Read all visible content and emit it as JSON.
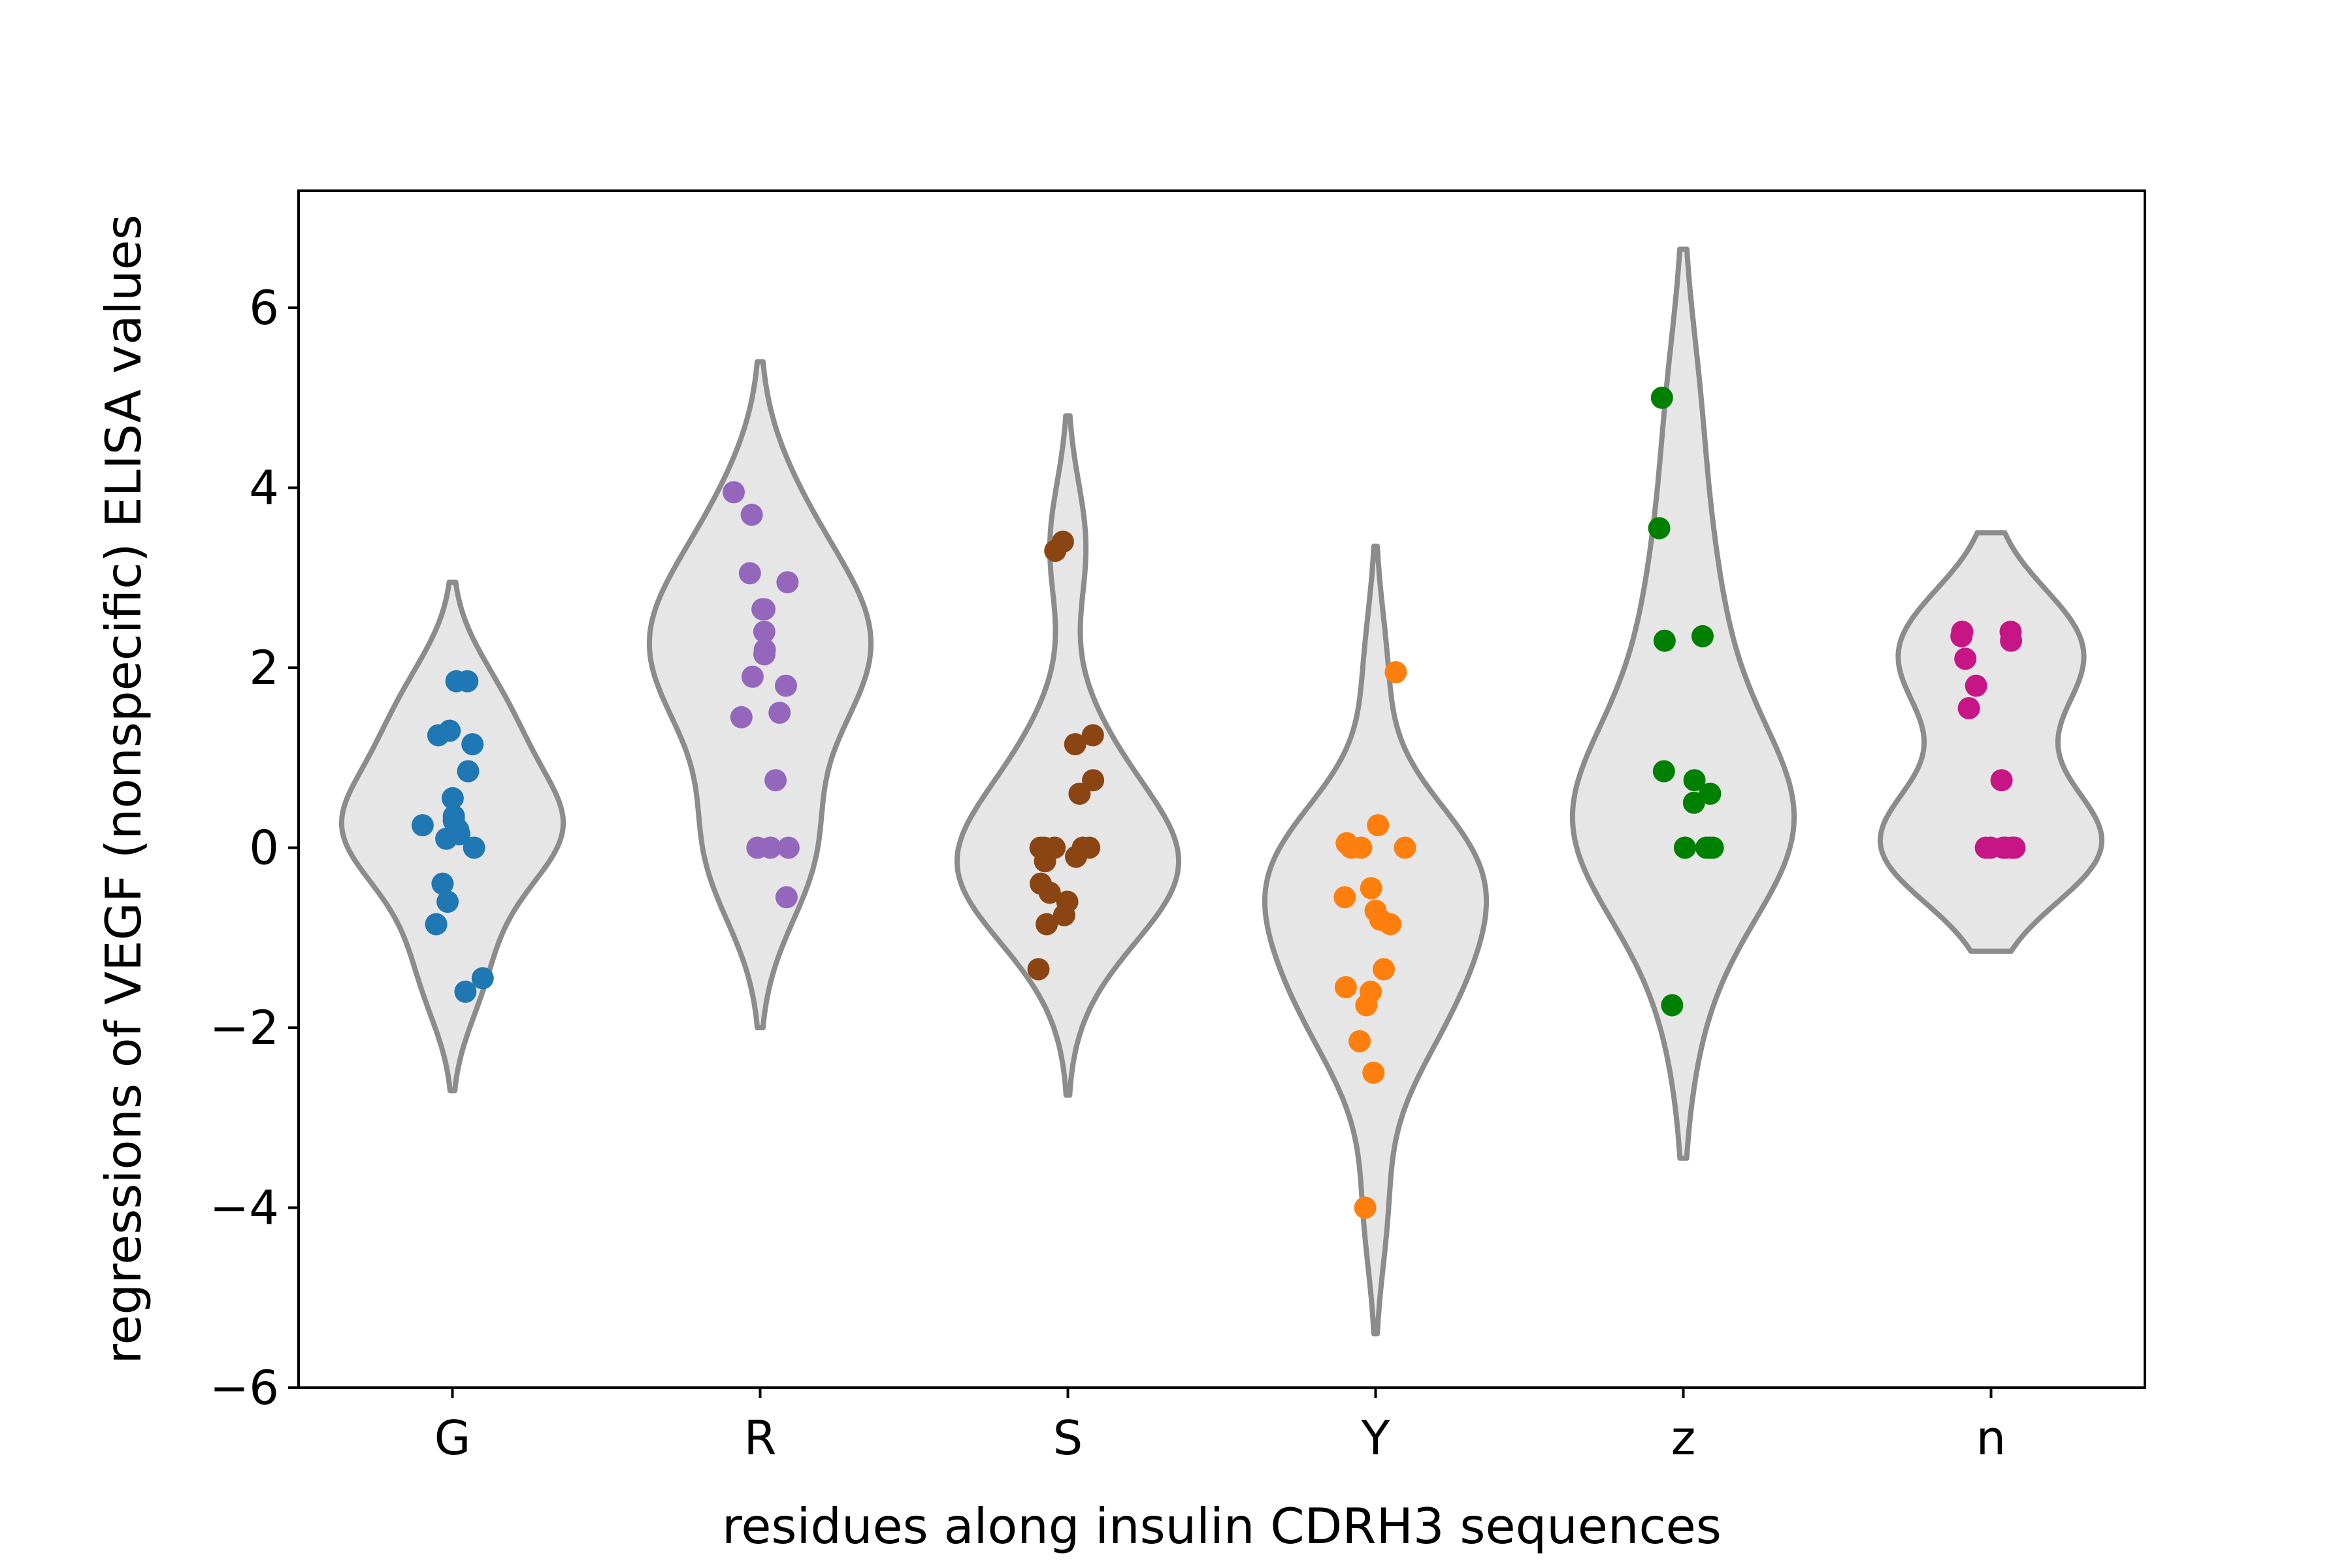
{
  "chart_data": {
    "type": "violin",
    "title": "",
    "xlabel": "residues along insulin CDRH3 sequences",
    "ylabel": "regressions of VEGF (nonspecific) ELISA values",
    "ylim": [
      -6,
      7.3
    ],
    "yticks": [
      -6,
      -4,
      -2,
      0,
      2,
      4,
      6
    ],
    "ytick_labels": [
      "−6",
      "−4",
      "−2",
      "0",
      "2",
      "4",
      "6"
    ],
    "categories": [
      "G",
      "R",
      "S",
      "Y",
      "z",
      "n"
    ],
    "grid": false,
    "violin_fill": "#e6e6e6",
    "violin_edge": "#8c8c8c",
    "series": [
      {
        "category": "G",
        "color": "#1f77b4",
        "range": [
          -2.7,
          2.95
        ],
        "values": [
          1.85,
          1.85,
          1.3,
          1.25,
          1.15,
          0.85,
          0.55,
          0.35,
          0.3,
          0.25,
          0.2,
          0.15,
          0.1,
          0.0,
          -0.4,
          -0.6,
          -0.85,
          -1.45,
          -1.6
        ]
      },
      {
        "category": "R",
        "color": "#9467bd",
        "range": [
          -2.0,
          5.4
        ],
        "values": [
          3.95,
          3.7,
          3.05,
          2.95,
          2.65,
          2.65,
          2.4,
          2.2,
          2.15,
          1.9,
          1.8,
          1.5,
          1.45,
          0.75,
          0.0,
          0.0,
          0.0,
          -0.55
        ]
      },
      {
        "category": "S",
        "color": "#8b4513",
        "range": [
          -2.75,
          4.8
        ],
        "values": [
          3.4,
          3.3,
          1.25,
          1.15,
          0.75,
          0.6,
          0.0,
          0.0,
          0.0,
          0.0,
          0.0,
          -0.1,
          -0.15,
          -0.4,
          -0.5,
          -0.6,
          -0.75,
          -0.85,
          -1.35
        ]
      },
      {
        "category": "Y",
        "color": "#ff7f0e",
        "range": [
          -5.4,
          3.35
        ],
        "values": [
          1.95,
          0.25,
          0.05,
          0.0,
          0.0,
          0.0,
          -0.45,
          -0.55,
          -0.7,
          -0.8,
          -0.85,
          -1.35,
          -1.55,
          -1.6,
          -1.75,
          -2.15,
          -2.5,
          -4.0
        ]
      },
      {
        "category": "z",
        "color": "#008000",
        "range": [
          -3.45,
          6.65
        ],
        "values": [
          5.0,
          3.55,
          2.35,
          2.3,
          0.85,
          0.75,
          0.6,
          0.5,
          0.0,
          0.0,
          0.0,
          0.0,
          0.0,
          -1.75
        ]
      },
      {
        "category": "n",
        "color": "#c71585",
        "range": [
          -1.15,
          3.5
        ],
        "values": [
          2.4,
          2.4,
          2.35,
          2.3,
          2.1,
          1.8,
          1.55,
          0.75,
          0.0,
          0.0,
          0.0,
          0.0,
          0.0,
          0.0,
          0.0
        ]
      }
    ]
  }
}
